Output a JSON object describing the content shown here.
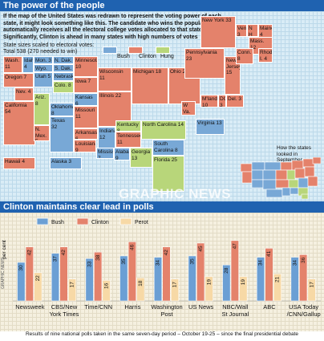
{
  "header": {
    "title": "The power of the people"
  },
  "intro": "If the map of the United States was redrawn to represent the voting power of each state, it might look something like this. The candidate who wins the popular vote automatically receives all the electoral college votes allocated to that state. Significantly, Clinton is ahead in many states with high numbers of votes",
  "scale_note": {
    "line1": "State sizes scaled to electoral votes:",
    "line2": "Total 538 (270 needed to win)"
  },
  "legend": {
    "bush": "Bush",
    "clinton": "Clinton",
    "hung": "Hung"
  },
  "colors": {
    "bush": "#78a8d6",
    "clinton": "#e4826b",
    "hung": "#b8d67a",
    "header": "#1f62b0",
    "perot": "#f7d9a6"
  },
  "states": [
    {
      "label": "Wash.",
      "votes": "11",
      "party": "clinton"
    },
    {
      "label": "Idaho",
      "votes": "4",
      "party": "bush"
    },
    {
      "label": "Mon.",
      "votes": "3",
      "party": "bush"
    },
    {
      "label": "N. Dak.",
      "votes": "3",
      "party": "bush"
    },
    {
      "label": "Minnesota",
      "votes": "10",
      "party": "clinton"
    },
    {
      "label": "Oregon",
      "votes": "7",
      "party": "clinton"
    },
    {
      "label": "Wyo.",
      "votes": "3",
      "party": "bush"
    },
    {
      "label": "S. Dak.",
      "votes": "3",
      "party": "bush"
    },
    {
      "label": "Wisconsin",
      "votes": "11",
      "party": "clinton"
    },
    {
      "label": "Nebraska",
      "votes": "5",
      "party": "bush"
    },
    {
      "label": "Utah",
      "votes": "5",
      "party": "bush"
    },
    {
      "label": "Iowa",
      "votes": "7",
      "party": "clinton"
    },
    {
      "label": "Colo.",
      "votes": "8",
      "party": "hung"
    },
    {
      "label": "Kansas",
      "votes": "6",
      "party": "bush"
    },
    {
      "label": "Nev.",
      "votes": "4",
      "party": "clinton"
    },
    {
      "label": "California",
      "votes": "54",
      "party": "clinton"
    },
    {
      "label": "Illinois",
      "votes": "22",
      "party": "clinton"
    },
    {
      "label": "Michigan",
      "votes": "18",
      "party": "clinton"
    },
    {
      "label": "Missouri",
      "votes": "11",
      "party": "clinton"
    },
    {
      "label": "Oklahoma",
      "votes": "8",
      "party": "bush"
    },
    {
      "label": "Ariz.",
      "votes": "8",
      "party": "hung"
    },
    {
      "label": "N. Mex.",
      "votes": "5",
      "party": "clinton"
    },
    {
      "label": "Arkansas",
      "votes": "6",
      "party": "clinton"
    },
    {
      "label": "Indiana",
      "votes": "12",
      "party": "bush"
    },
    {
      "label": "Kentucky",
      "votes": "8",
      "party": "hung"
    },
    {
      "label": "Texas",
      "votes": "32",
      "party": "bush"
    },
    {
      "label": "Tennessee",
      "votes": "11",
      "party": "clinton"
    },
    {
      "label": "Louisiana",
      "votes": "9",
      "party": "clinton"
    },
    {
      "label": "Mississippi",
      "votes": "7",
      "party": "bush"
    },
    {
      "label": "Alabama",
      "votes": "9",
      "party": "bush"
    },
    {
      "label": "Georgia",
      "votes": "13",
      "party": "hung"
    },
    {
      "label": "Florida",
      "votes": "25",
      "party": "hung"
    },
    {
      "label": "Ohio",
      "votes": "21",
      "party": "clinton"
    },
    {
      "label": "W Va.",
      "votes": "5",
      "party": "clinton"
    },
    {
      "label": "Virginia",
      "votes": "13",
      "party": "bush"
    },
    {
      "label": "North Carolina",
      "votes": "14",
      "party": "hung"
    },
    {
      "label": "South Carolina",
      "votes": "8",
      "party": "bush"
    },
    {
      "label": "Pennsylvania",
      "votes": "23",
      "party": "clinton"
    },
    {
      "label": "New York",
      "votes": "33",
      "party": "clinton"
    },
    {
      "label": "New Jersey",
      "votes": "15",
      "party": "clinton"
    },
    {
      "label": "M'land",
      "votes": "10",
      "party": "clinton"
    },
    {
      "label": "DC",
      "votes": "3",
      "party": "clinton"
    },
    {
      "label": "Del.",
      "votes": "3",
      "party": "clinton"
    },
    {
      "label": "Verm.",
      "votes": "3",
      "party": "clinton"
    },
    {
      "label": "N H",
      "votes": "4",
      "party": "clinton"
    },
    {
      "label": "Maine",
      "votes": "4",
      "party": "clinton"
    },
    {
      "label": "Mass.",
      "votes": "12",
      "party": "clinton"
    },
    {
      "label": "Rhode I.",
      "votes": "4",
      "party": "clinton"
    },
    {
      "label": "Conn.",
      "votes": "8",
      "party": "clinton"
    },
    {
      "label": "Hawaii",
      "votes": "4",
      "party": "clinton"
    },
    {
      "label": "Alaska",
      "votes": "3",
      "party": "bush"
    }
  ],
  "aside_note": "How the states looked in September",
  "watermark": "GRAPHIC NEWS",
  "chart_header": "Clinton maintains clear lead in polls",
  "credit": "GRAPHIC NEWS",
  "footnote": "Results of nine national polls taken in the same seven-day period – October 19-25 – since the final presidential debate",
  "chart_data": {
    "type": "bar",
    "ylabel": "per cent",
    "ylim": [
      0,
      50
    ],
    "grid": true,
    "legend_position": "top",
    "categories": [
      "Newsweek",
      "CBS/New York Times",
      "Time/CNN",
      "Harris",
      "Washington Post",
      "US News",
      "NBC/Wall St Journal",
      "ABC",
      "USA Today /CNN/Gallup"
    ],
    "category_lines": [
      [
        "Newsweek"
      ],
      [
        "CBS/New",
        "York Times"
      ],
      [
        "Time/CNN"
      ],
      [
        "Harris"
      ],
      [
        "Washington",
        "Post"
      ],
      [
        "US News"
      ],
      [
        "NBC/Wall",
        "St Journal"
      ],
      [
        "ABC"
      ],
      [
        "USA Today",
        "/CNN/Gallup"
      ]
    ],
    "series": [
      {
        "name": "Bush",
        "color": "#6b9fd4",
        "values": [
          30,
          37,
          33,
          35,
          34,
          35,
          28,
          34,
          34
        ]
      },
      {
        "name": "Clinton",
        "color": "#e4826b",
        "values": [
          42,
          42,
          38,
          46,
          42,
          45,
          47,
          41,
          36
        ]
      },
      {
        "name": "Perot",
        "color": "#f7d9a6",
        "values": [
          22,
          17,
          16,
          18,
          17,
          19,
          19,
          21,
          17
        ]
      }
    ]
  }
}
